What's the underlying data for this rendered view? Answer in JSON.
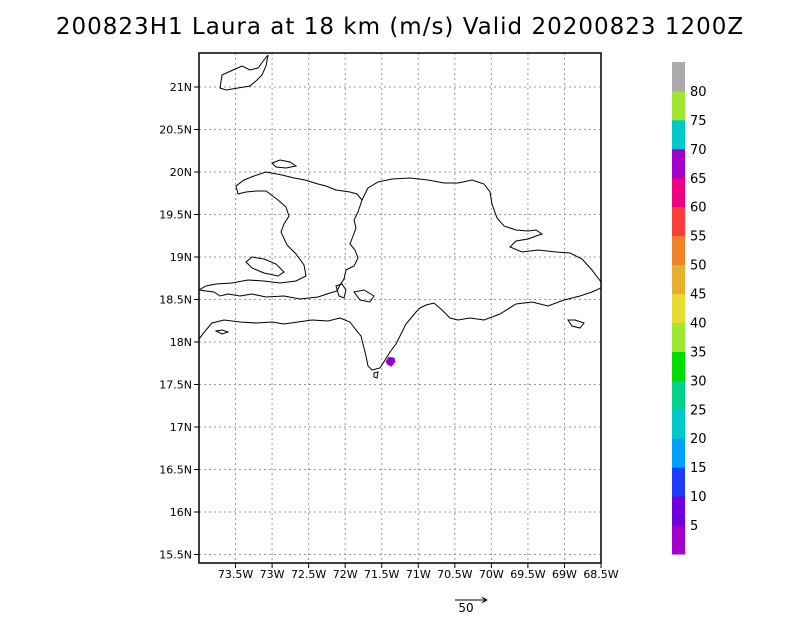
{
  "title": "200823H1 Laura at 18 km (m/s) Valid 20200823 1200Z",
  "map": {
    "lon_range": [
      -74.0,
      -68.5
    ],
    "lat_range": [
      15.4,
      21.4
    ],
    "lon_ticks": [
      "73.5W",
      "73W",
      "72.5W",
      "72W",
      "71.5W",
      "71W",
      "70.5W",
      "70W",
      "69.5W",
      "69W",
      "68.5W"
    ],
    "lat_ticks": [
      "15.5N",
      "16N",
      "16.5N",
      "17N",
      "17.5N",
      "18N",
      "18.5N",
      "19N",
      "19.5N",
      "20N",
      "20.5N",
      "21N"
    ],
    "grid": true,
    "features": [
      "Hispaniola coastline",
      "Great Inagua coastline",
      "Tortuga coastline",
      "Gonave coastline",
      "Saona coastline"
    ]
  },
  "colorbar": {
    "labels": [
      "5",
      "10",
      "15",
      "20",
      "25",
      "30",
      "35",
      "40",
      "45",
      "50",
      "55",
      "60",
      "65",
      "70",
      "75",
      "80"
    ],
    "colors": [
      "#a000c8",
      "#6e00dc",
      "#1e3cff",
      "#00a0ff",
      "#00c8c8",
      "#00d28c",
      "#00dc00",
      "#a0e632",
      "#e6dc32",
      "#e6af2d",
      "#f08228",
      "#fa3c3c",
      "#f00082",
      "#a000c8",
      "#00c8c8",
      "#a0e632",
      "#aaaaaa"
    ]
  },
  "wind_feature": {
    "center": [
      -71.38,
      17.78
    ],
    "colors": [
      "#a000c8",
      "#6e00dc"
    ]
  },
  "reference_vector": {
    "label": "50"
  }
}
